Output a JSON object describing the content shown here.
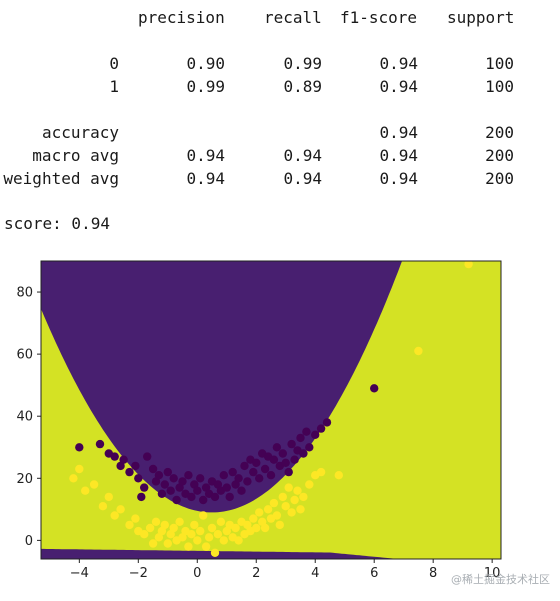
{
  "report": {
    "headers": [
      "precision",
      "recall",
      "f1-score",
      "support"
    ],
    "rows": [
      {
        "label": "0",
        "precision": "0.90",
        "recall": "0.99",
        "f1": "0.94",
        "support": "100"
      },
      {
        "label": "1",
        "precision": "0.99",
        "recall": "0.89",
        "f1": "0.94",
        "support": "100"
      },
      {
        "label": "accuracy",
        "precision": "",
        "recall": "",
        "f1": "0.94",
        "support": "200"
      },
      {
        "label": "macro avg",
        "precision": "0.94",
        "recall": "0.94",
        "f1": "0.94",
        "support": "200"
      },
      {
        "label": "weighted avg",
        "precision": "0.94",
        "recall": "0.94",
        "f1": "0.94",
        "support": "200"
      }
    ]
  },
  "score_line": "score: 0.94",
  "watermark": "@稀土掘金技术社区",
  "chart_data": {
    "type": "scatter",
    "title": "",
    "xlabel": "",
    "ylabel": "",
    "xlim": [
      -5.3,
      10.3
    ],
    "ylim": [
      -6,
      90
    ],
    "xticks": [
      -4,
      -2,
      0,
      2,
      4,
      6,
      8,
      10
    ],
    "yticks": [
      0,
      20,
      40,
      60,
      80
    ],
    "grid": false,
    "colors": {
      "class0": "#481f70",
      "class1": "#d4e224",
      "class0_point": "#440154",
      "class1_point": "#fde725"
    },
    "series": [
      {
        "points": [
          [
            -4,
            30
          ],
          [
            -3.3,
            31
          ],
          [
            -3,
            28
          ],
          [
            -2.8,
            27
          ],
          [
            -2.6,
            24
          ],
          [
            -2.5,
            26
          ],
          [
            -2.3,
            22
          ],
          [
            -2.1,
            24
          ],
          [
            -2,
            20
          ],
          [
            -1.9,
            14
          ],
          [
            -1.8,
            17
          ],
          [
            -1.7,
            27
          ],
          [
            -1.5,
            23
          ],
          [
            -1.4,
            19
          ],
          [
            -1.3,
            21
          ],
          [
            -1.2,
            15
          ],
          [
            -1.1,
            18
          ],
          [
            -1,
            22
          ],
          [
            -0.9,
            16
          ],
          [
            -0.8,
            20
          ],
          [
            -0.7,
            13
          ],
          [
            -0.6,
            17
          ],
          [
            -0.5,
            19
          ],
          [
            -0.4,
            15
          ],
          [
            -0.3,
            21
          ],
          [
            -0.2,
            14
          ],
          [
            -0.1,
            18
          ],
          [
            0,
            16
          ],
          [
            0.1,
            20
          ],
          [
            0.2,
            13
          ],
          [
            0.3,
            17
          ],
          [
            0.4,
            15
          ],
          [
            0.5,
            19
          ],
          [
            0.6,
            14
          ],
          [
            0.7,
            18
          ],
          [
            0.8,
            16
          ],
          [
            0.9,
            21
          ],
          [
            1,
            17
          ],
          [
            1.1,
            14
          ],
          [
            1.2,
            22
          ],
          [
            1.3,
            18
          ],
          [
            1.4,
            20
          ],
          [
            1.5,
            16
          ],
          [
            1.6,
            24
          ],
          [
            1.7,
            19
          ],
          [
            1.8,
            26
          ],
          [
            1.9,
            22
          ],
          [
            2,
            25
          ],
          [
            2.1,
            20
          ],
          [
            2.2,
            28
          ],
          [
            2.3,
            23
          ],
          [
            2.4,
            27
          ],
          [
            2.5,
            21
          ],
          [
            2.6,
            26
          ],
          [
            2.7,
            30
          ],
          [
            2.8,
            24
          ],
          [
            2.9,
            28
          ],
          [
            3,
            25
          ],
          [
            3.1,
            22
          ],
          [
            3.2,
            31
          ],
          [
            3.3,
            26
          ],
          [
            3.4,
            29
          ],
          [
            3.5,
            33
          ],
          [
            3.6,
            28
          ],
          [
            3.7,
            35
          ],
          [
            3.8,
            30
          ],
          [
            4,
            34
          ],
          [
            4.2,
            36
          ],
          [
            4.4,
            38
          ],
          [
            6,
            49
          ]
        ]
      },
      {
        "points": [
          [
            -4.2,
            20
          ],
          [
            -4,
            23
          ],
          [
            -3.8,
            16
          ],
          [
            -3.5,
            18
          ],
          [
            -3.2,
            11
          ],
          [
            -3,
            14
          ],
          [
            -2.8,
            8
          ],
          [
            -2.6,
            10
          ],
          [
            -2.3,
            5
          ],
          [
            -2.1,
            7
          ],
          [
            -2,
            3
          ],
          [
            -1.8,
            2
          ],
          [
            -1.6,
            4
          ],
          [
            -1.5,
            -1
          ],
          [
            -1.4,
            6
          ],
          [
            -1.3,
            1
          ],
          [
            -1.2,
            3
          ],
          [
            -1.1,
            5
          ],
          [
            -1,
            -1
          ],
          [
            -0.9,
            2
          ],
          [
            -0.8,
            4
          ],
          [
            -0.7,
            0
          ],
          [
            -0.6,
            6
          ],
          [
            -0.5,
            1
          ],
          [
            -0.4,
            3
          ],
          [
            -0.3,
            -2
          ],
          [
            -0.2,
            2
          ],
          [
            -0.1,
            5
          ],
          [
            0,
            0
          ],
          [
            0.1,
            3
          ],
          [
            0.2,
            8
          ],
          [
            0.3,
            -2
          ],
          [
            0.4,
            1
          ],
          [
            0.5,
            4
          ],
          [
            0.6,
            -4
          ],
          [
            0.7,
            2
          ],
          [
            0.8,
            6
          ],
          [
            0.9,
            0
          ],
          [
            1,
            3
          ],
          [
            1.1,
            5
          ],
          [
            1.2,
            1
          ],
          [
            1.3,
            4
          ],
          [
            1.4,
            0
          ],
          [
            1.5,
            6
          ],
          [
            1.6,
            2
          ],
          [
            1.7,
            5
          ],
          [
            1.8,
            3
          ],
          [
            1.9,
            7
          ],
          [
            2,
            4
          ],
          [
            2.1,
            9
          ],
          [
            2.2,
            6
          ],
          [
            2.3,
            4
          ],
          [
            2.4,
            10
          ],
          [
            2.5,
            7
          ],
          [
            2.6,
            12
          ],
          [
            2.7,
            8
          ],
          [
            2.8,
            5
          ],
          [
            2.9,
            14
          ],
          [
            3,
            11
          ],
          [
            3.1,
            17
          ],
          [
            3.2,
            9
          ],
          [
            3.3,
            13
          ],
          [
            3.4,
            16
          ],
          [
            3.5,
            10
          ],
          [
            3.6,
            14
          ],
          [
            3.8,
            18
          ],
          [
            4,
            21
          ],
          [
            4.2,
            22
          ],
          [
            4.8,
            21
          ],
          [
            7.5,
            61
          ],
          [
            9.2,
            89
          ]
        ]
      }
    ]
  }
}
